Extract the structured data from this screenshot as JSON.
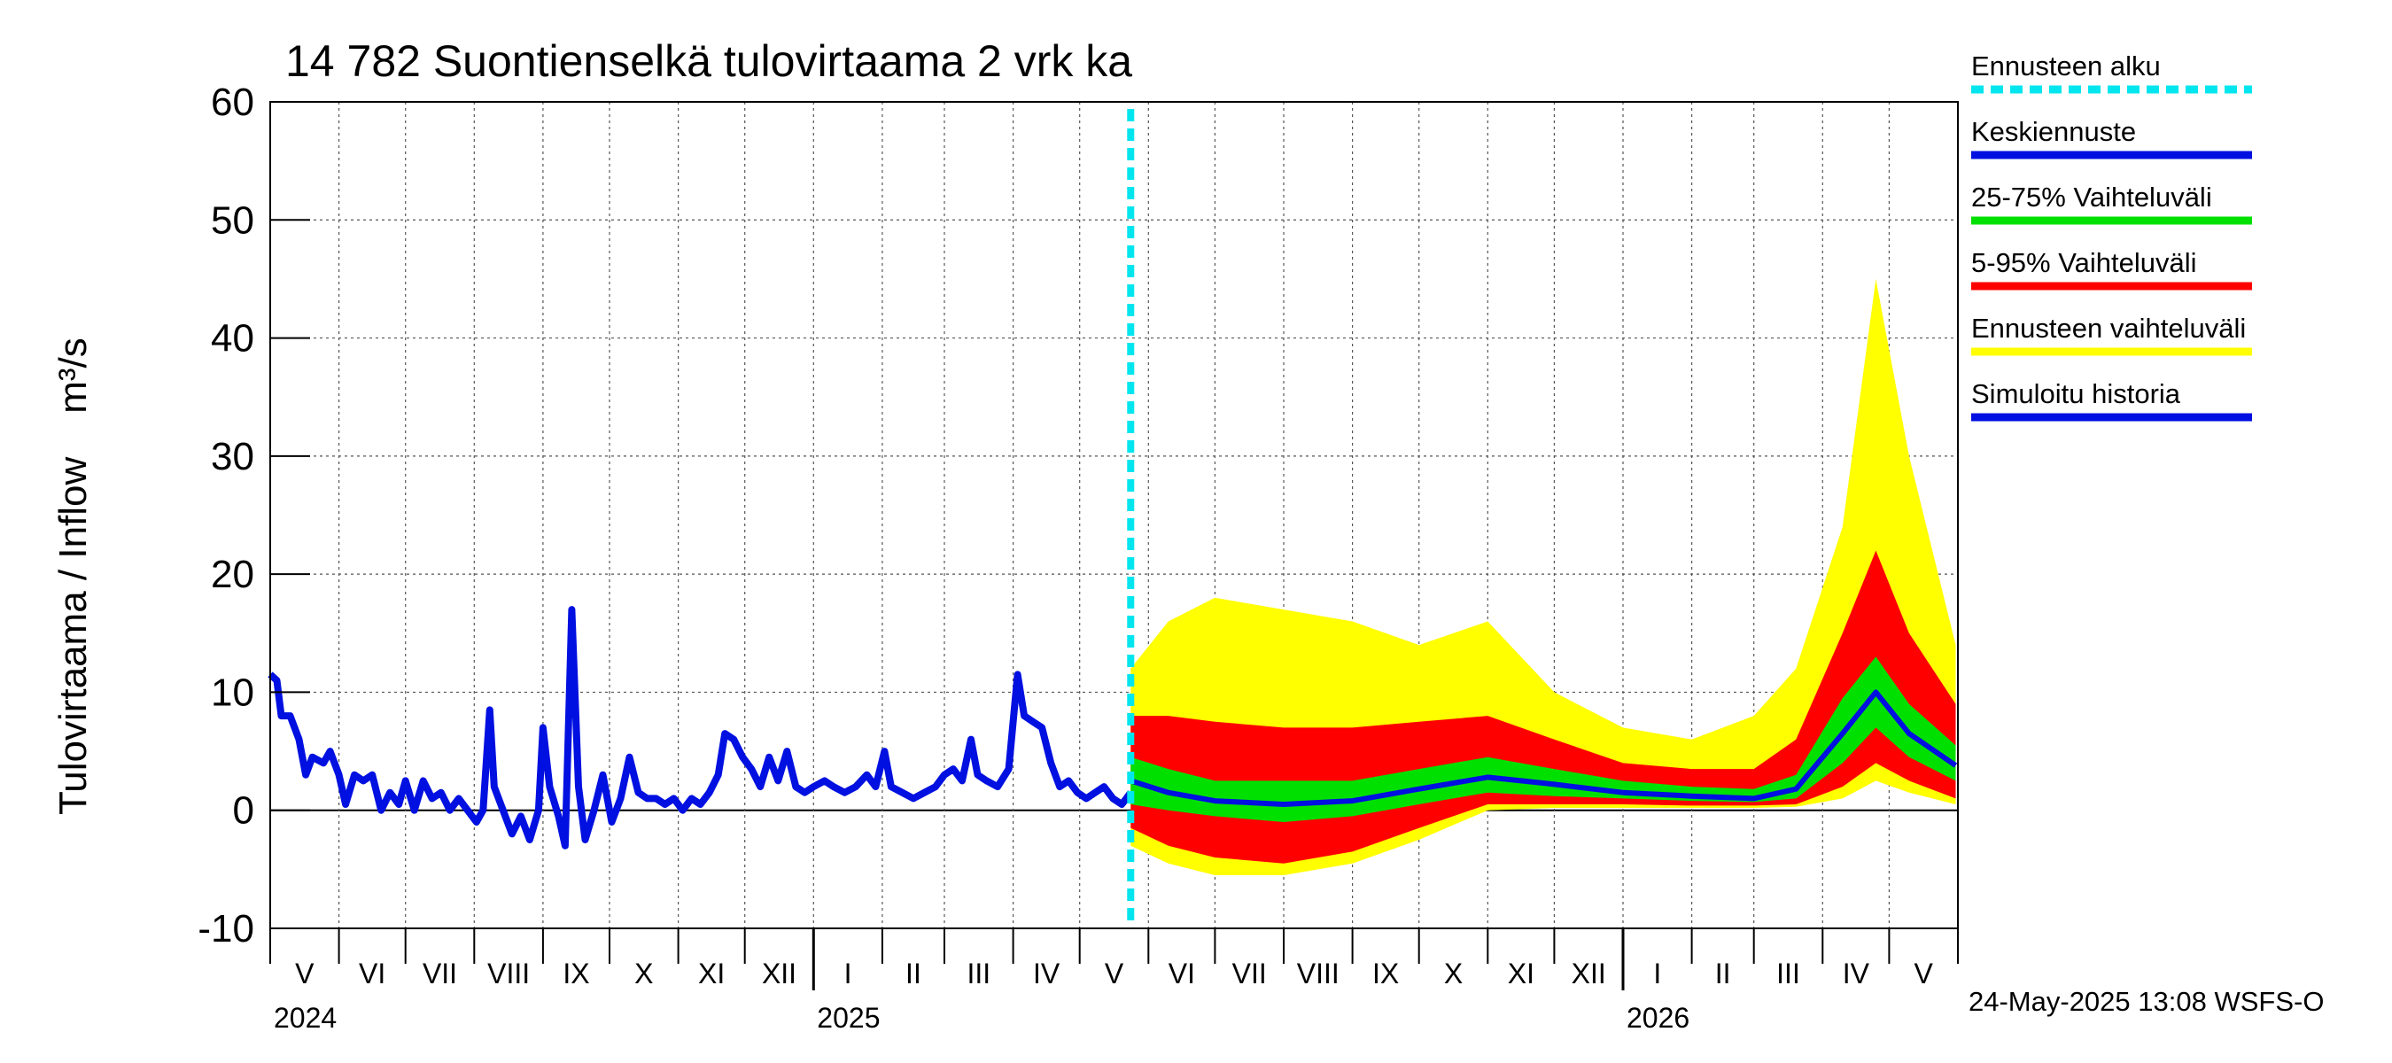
{
  "chart_data": {
    "type": "area",
    "title": "14 782 Suontienselkä tulovirtaama 2 vrk ka",
    "ylabel": "Tulovirtaama / Inflow    m³/s",
    "ylim": [
      -10,
      60
    ],
    "yticks": [
      "-10",
      "0",
      "10",
      "20",
      "30",
      "40",
      "50",
      "60"
    ],
    "x_range": [
      "2024-05-01",
      "2026-05-31"
    ],
    "forecast_start": "2025-05-24",
    "grid": true,
    "legend_position": "right",
    "months": [
      "V",
      "VI",
      "VII",
      "VIII",
      "IX",
      "X",
      "XI",
      "XII",
      "I",
      "II",
      "III",
      "IV",
      "V",
      "VI",
      "VII",
      "VIII",
      "IX",
      "X",
      "XI",
      "XII",
      "I",
      "II",
      "III",
      "IV",
      "V"
    ],
    "years": [
      "2024",
      "2025",
      "2026"
    ],
    "legend": [
      {
        "label": "Ennusteen alku",
        "color": "#00e5ee",
        "style": "dashed"
      },
      {
        "label": "Keskiennuste",
        "color": "#0010e0",
        "style": "solid"
      },
      {
        "label": "25-75% Vaihteluväli",
        "color": "#00e000",
        "style": "solid"
      },
      {
        "label": "5-95% Vaihteluväli",
        "color": "#ff0000",
        "style": "solid"
      },
      {
        "label": "Ennusteen vaihteluväli",
        "color": "#ffff00",
        "style": "solid"
      },
      {
        "label": "Simuloitu historia",
        "color": "#0010e0",
        "style": "solid"
      }
    ],
    "history": [
      [
        "2024-05-01",
        11.5
      ],
      [
        "2024-05-04",
        11.0
      ],
      [
        "2024-05-06",
        8.0
      ],
      [
        "2024-05-10",
        8.0
      ],
      [
        "2024-05-14",
        6.0
      ],
      [
        "2024-05-17",
        3.0
      ],
      [
        "2024-05-20",
        4.5
      ],
      [
        "2024-05-25",
        4.0
      ],
      [
        "2024-05-28",
        5.0
      ],
      [
        "2024-06-01",
        3.0
      ],
      [
        "2024-06-04",
        0.5
      ],
      [
        "2024-06-08",
        3.0
      ],
      [
        "2024-06-12",
        2.5
      ],
      [
        "2024-06-16",
        3.0
      ],
      [
        "2024-06-20",
        0.0
      ],
      [
        "2024-06-24",
        1.5
      ],
      [
        "2024-06-28",
        0.5
      ],
      [
        "2024-07-01",
        2.5
      ],
      [
        "2024-07-05",
        0.0
      ],
      [
        "2024-07-09",
        2.5
      ],
      [
        "2024-07-13",
        1.0
      ],
      [
        "2024-07-17",
        1.5
      ],
      [
        "2024-07-21",
        0.0
      ],
      [
        "2024-07-25",
        1.0
      ],
      [
        "2024-07-29",
        0.0
      ],
      [
        "2024-08-02",
        -1.0
      ],
      [
        "2024-08-05",
        0.0
      ],
      [
        "2024-08-08",
        8.5
      ],
      [
        "2024-08-10",
        2.0
      ],
      [
        "2024-08-14",
        0.0
      ],
      [
        "2024-08-18",
        -2.0
      ],
      [
        "2024-08-22",
        -0.5
      ],
      [
        "2024-08-26",
        -2.5
      ],
      [
        "2024-08-30",
        0.0
      ],
      [
        "2024-09-01",
        7.0
      ],
      [
        "2024-09-04",
        2.0
      ],
      [
        "2024-09-08",
        -0.5
      ],
      [
        "2024-09-11",
        -3.0
      ],
      [
        "2024-09-14",
        17.0
      ],
      [
        "2024-09-17",
        2.0
      ],
      [
        "2024-09-20",
        -2.5
      ],
      [
        "2024-09-24",
        0.0
      ],
      [
        "2024-09-28",
        3.0
      ],
      [
        "2024-10-02",
        -1.0
      ],
      [
        "2024-10-06",
        1.0
      ],
      [
        "2024-10-10",
        4.5
      ],
      [
        "2024-10-14",
        1.5
      ],
      [
        "2024-10-18",
        1.0
      ],
      [
        "2024-10-22",
        1.0
      ],
      [
        "2024-10-26",
        0.5
      ],
      [
        "2024-10-30",
        1.0
      ],
      [
        "2024-11-03",
        0.0
      ],
      [
        "2024-11-07",
        1.0
      ],
      [
        "2024-11-11",
        0.5
      ],
      [
        "2024-11-15",
        1.5
      ],
      [
        "2024-11-19",
        3.0
      ],
      [
        "2024-11-22",
        6.5
      ],
      [
        "2024-11-26",
        6.0
      ],
      [
        "2024-11-30",
        4.5
      ],
      [
        "2024-12-04",
        3.5
      ],
      [
        "2024-12-08",
        2.0
      ],
      [
        "2024-12-12",
        4.5
      ],
      [
        "2024-12-16",
        2.5
      ],
      [
        "2024-12-20",
        5.0
      ],
      [
        "2024-12-24",
        2.0
      ],
      [
        "2024-12-28",
        1.5
      ],
      [
        "2025-01-01",
        2.0
      ],
      [
        "2025-01-06",
        2.5
      ],
      [
        "2025-01-10",
        2.0
      ],
      [
        "2025-01-15",
        1.5
      ],
      [
        "2025-01-20",
        2.0
      ],
      [
        "2025-01-25",
        3.0
      ],
      [
        "2025-01-29",
        2.0
      ],
      [
        "2025-02-02",
        5.0
      ],
      [
        "2025-02-05",
        2.0
      ],
      [
        "2025-02-10",
        1.5
      ],
      [
        "2025-02-15",
        1.0
      ],
      [
        "2025-02-20",
        1.5
      ],
      [
        "2025-02-25",
        2.0
      ],
      [
        "2025-03-01",
        3.0
      ],
      [
        "2025-03-05",
        3.5
      ],
      [
        "2025-03-09",
        2.5
      ],
      [
        "2025-03-13",
        6.0
      ],
      [
        "2025-03-16",
        3.0
      ],
      [
        "2025-03-20",
        2.5
      ],
      [
        "2025-03-25",
        2.0
      ],
      [
        "2025-03-30",
        3.5
      ],
      [
        "2025-04-03",
        11.5
      ],
      [
        "2025-04-06",
        8.0
      ],
      [
        "2025-04-10",
        7.5
      ],
      [
        "2025-04-14",
        7.0
      ],
      [
        "2025-04-18",
        4.0
      ],
      [
        "2025-04-22",
        2.0
      ],
      [
        "2025-04-26",
        2.5
      ],
      [
        "2025-04-30",
        1.5
      ],
      [
        "2025-05-04",
        1.0
      ],
      [
        "2025-05-08",
        1.5
      ],
      [
        "2025-05-12",
        2.0
      ],
      [
        "2025-05-16",
        1.0
      ],
      [
        "2025-05-20",
        0.5
      ],
      [
        "2025-05-24",
        1.5
      ]
    ],
    "forecast": [
      {
        "x": "2025-05-24",
        "min": -3.0,
        "p5": -1.5,
        "p25": 0.5,
        "median": 2.5,
        "p75": 4.5,
        "p95": 8.0,
        "max": 12.0
      },
      {
        "x": "2025-06-10",
        "min": -4.5,
        "p5": -3.0,
        "p25": 0.0,
        "median": 1.5,
        "p75": 3.5,
        "p95": 8.0,
        "max": 16.0
      },
      {
        "x": "2025-07-01",
        "min": -5.5,
        "p5": -4.0,
        "p25": -0.5,
        "median": 0.8,
        "p75": 2.5,
        "p95": 7.5,
        "max": 18.0
      },
      {
        "x": "2025-08-01",
        "min": -5.5,
        "p5": -4.5,
        "p25": -1.0,
        "median": 0.5,
        "p75": 2.5,
        "p95": 7.0,
        "max": 17.0
      },
      {
        "x": "2025-09-01",
        "min": -4.5,
        "p5": -3.5,
        "p25": -0.5,
        "median": 0.8,
        "p75": 2.5,
        "p95": 7.0,
        "max": 16.0
      },
      {
        "x": "2025-10-01",
        "min": -2.5,
        "p5": -1.5,
        "p25": 0.5,
        "median": 1.8,
        "p75": 3.5,
        "p95": 7.5,
        "max": 14.0
      },
      {
        "x": "2025-11-01",
        "min": 0.0,
        "p5": 0.5,
        "p25": 1.5,
        "median": 2.8,
        "p75": 4.5,
        "p95": 8.0,
        "max": 16.0
      },
      {
        "x": "2025-12-01",
        "min": 0.2,
        "p5": 0.5,
        "p25": 1.2,
        "median": 2.2,
        "p75": 3.5,
        "p95": 6.0,
        "max": 10.0
      },
      {
        "x": "2026-01-01",
        "min": 0.2,
        "p5": 0.5,
        "p25": 1.0,
        "median": 1.5,
        "p75": 2.5,
        "p95": 4.0,
        "max": 7.0
      },
      {
        "x": "2026-02-01",
        "min": 0.2,
        "p5": 0.4,
        "p25": 0.8,
        "median": 1.2,
        "p75": 2.0,
        "p95": 3.5,
        "max": 6.0
      },
      {
        "x": "2026-03-01",
        "min": 0.2,
        "p5": 0.4,
        "p25": 0.7,
        "median": 1.0,
        "p75": 1.8,
        "p95": 3.5,
        "max": 8.0
      },
      {
        "x": "2026-03-20",
        "min": 0.3,
        "p5": 0.5,
        "p25": 1.0,
        "median": 1.8,
        "p75": 3.0,
        "p95": 6.0,
        "max": 12.0
      },
      {
        "x": "2026-04-10",
        "min": 1.0,
        "p5": 2.0,
        "p25": 4.0,
        "median": 6.5,
        "p75": 9.5,
        "p95": 15.0,
        "max": 24.0
      },
      {
        "x": "2026-04-25",
        "min": 2.5,
        "p5": 4.0,
        "p25": 7.0,
        "median": 10.0,
        "p75": 13.0,
        "p95": 22.0,
        "max": 45.0
      },
      {
        "x": "2026-05-10",
        "min": 1.5,
        "p5": 2.5,
        "p25": 4.5,
        "median": 6.5,
        "p75": 9.0,
        "p95": 15.0,
        "max": 30.0
      },
      {
        "x": "2026-05-31",
        "min": 0.5,
        "p5": 1.0,
        "p25": 2.5,
        "median": 3.8,
        "p75": 5.5,
        "p95": 9.0,
        "max": 14.0
      }
    ]
  },
  "footer": {
    "timestamp": "24-May-2025 13:08 WSFS-O"
  }
}
